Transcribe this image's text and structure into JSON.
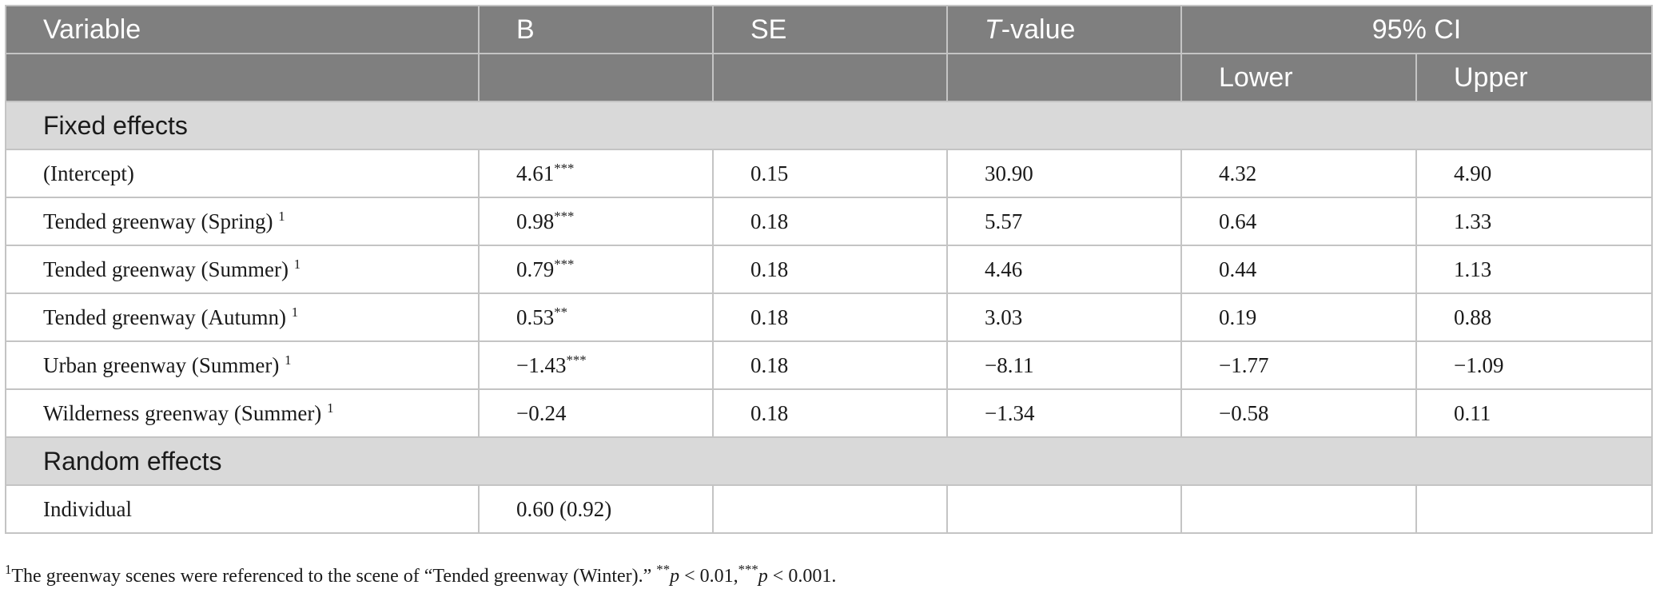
{
  "header": {
    "variable": "Variable",
    "b": "B",
    "se": "SE",
    "t_italic": "T",
    "t_rest": "-value",
    "ci": "95% CI",
    "lower": "Lower",
    "upper": "Upper"
  },
  "sections": {
    "fixed": "Fixed effects",
    "random": "Random effects"
  },
  "rows": [
    {
      "variable": "(Intercept)",
      "ref": "",
      "b": "4.61",
      "stars": "***",
      "se": "0.15",
      "t": "30.90",
      "lower": "4.32",
      "upper": "4.90"
    },
    {
      "variable": "Tended greenway (Spring) ",
      "ref": "1",
      "b": "0.98",
      "stars": "***",
      "se": "0.18",
      "t": "5.57",
      "lower": "0.64",
      "upper": "1.33"
    },
    {
      "variable": "Tended greenway (Summer) ",
      "ref": "1",
      "b": "0.79",
      "stars": "***",
      "se": "0.18",
      "t": "4.46",
      "lower": "0.44",
      "upper": "1.13"
    },
    {
      "variable": "Tended greenway (Autumn) ",
      "ref": "1",
      "b": "0.53",
      "stars": "**",
      "se": "0.18",
      "t": "3.03",
      "lower": "0.19",
      "upper": "0.88"
    },
    {
      "variable": "Urban greenway (Summer) ",
      "ref": "1",
      "b": "−1.43",
      "stars": "***",
      "se": "0.18",
      "t": "−8.11",
      "lower": "−1.77",
      "upper": "−1.09"
    },
    {
      "variable": "Wilderness greenway (Summer) ",
      "ref": "1",
      "b": "−0.24",
      "stars": "",
      "se": "0.18",
      "t": "−1.34",
      "lower": "−0.58",
      "upper": "0.11"
    }
  ],
  "random_rows": [
    {
      "variable": "Individual",
      "b": "0.60 (0.92)",
      "se": "",
      "t": "",
      "lower": "",
      "upper": ""
    }
  ],
  "footnote": {
    "marker": "1",
    "text": "The greenway scenes were referenced to the scene of “Tended greenway (Winter).” ",
    "p1_stars": "**",
    "p1_sym": "p",
    "p1_rest": " < 0.01,",
    "p2_stars": "***",
    "p2_sym": "p",
    "p2_rest": " < 0.001."
  }
}
